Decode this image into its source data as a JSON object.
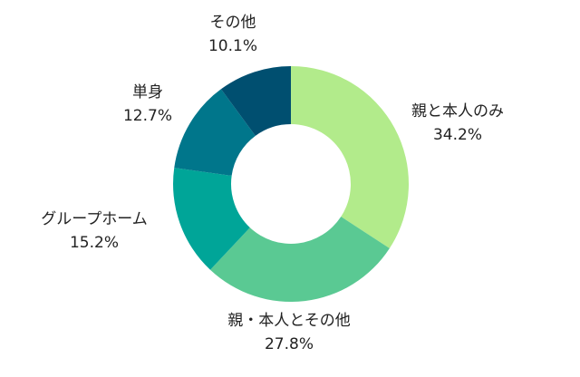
{
  "chart_data": {
    "type": "pie",
    "variant": "donut",
    "categories": [
      "親と本人のみ",
      "親・本人とその他",
      "グループホーム",
      "単身",
      "その他"
    ],
    "values": [
      34.2,
      27.8,
      15.2,
      12.7,
      10.1
    ],
    "value_labels": [
      "34.2%",
      "27.8%",
      "15.2%",
      "12.7%",
      "10.1%"
    ],
    "unit": "%",
    "colors": [
      "#b2eb8b",
      "#5ac993",
      "#00a598",
      "#00768b",
      "#004f70"
    ],
    "start": "12 o'clock",
    "direction": "clockwise",
    "legend": "none"
  }
}
